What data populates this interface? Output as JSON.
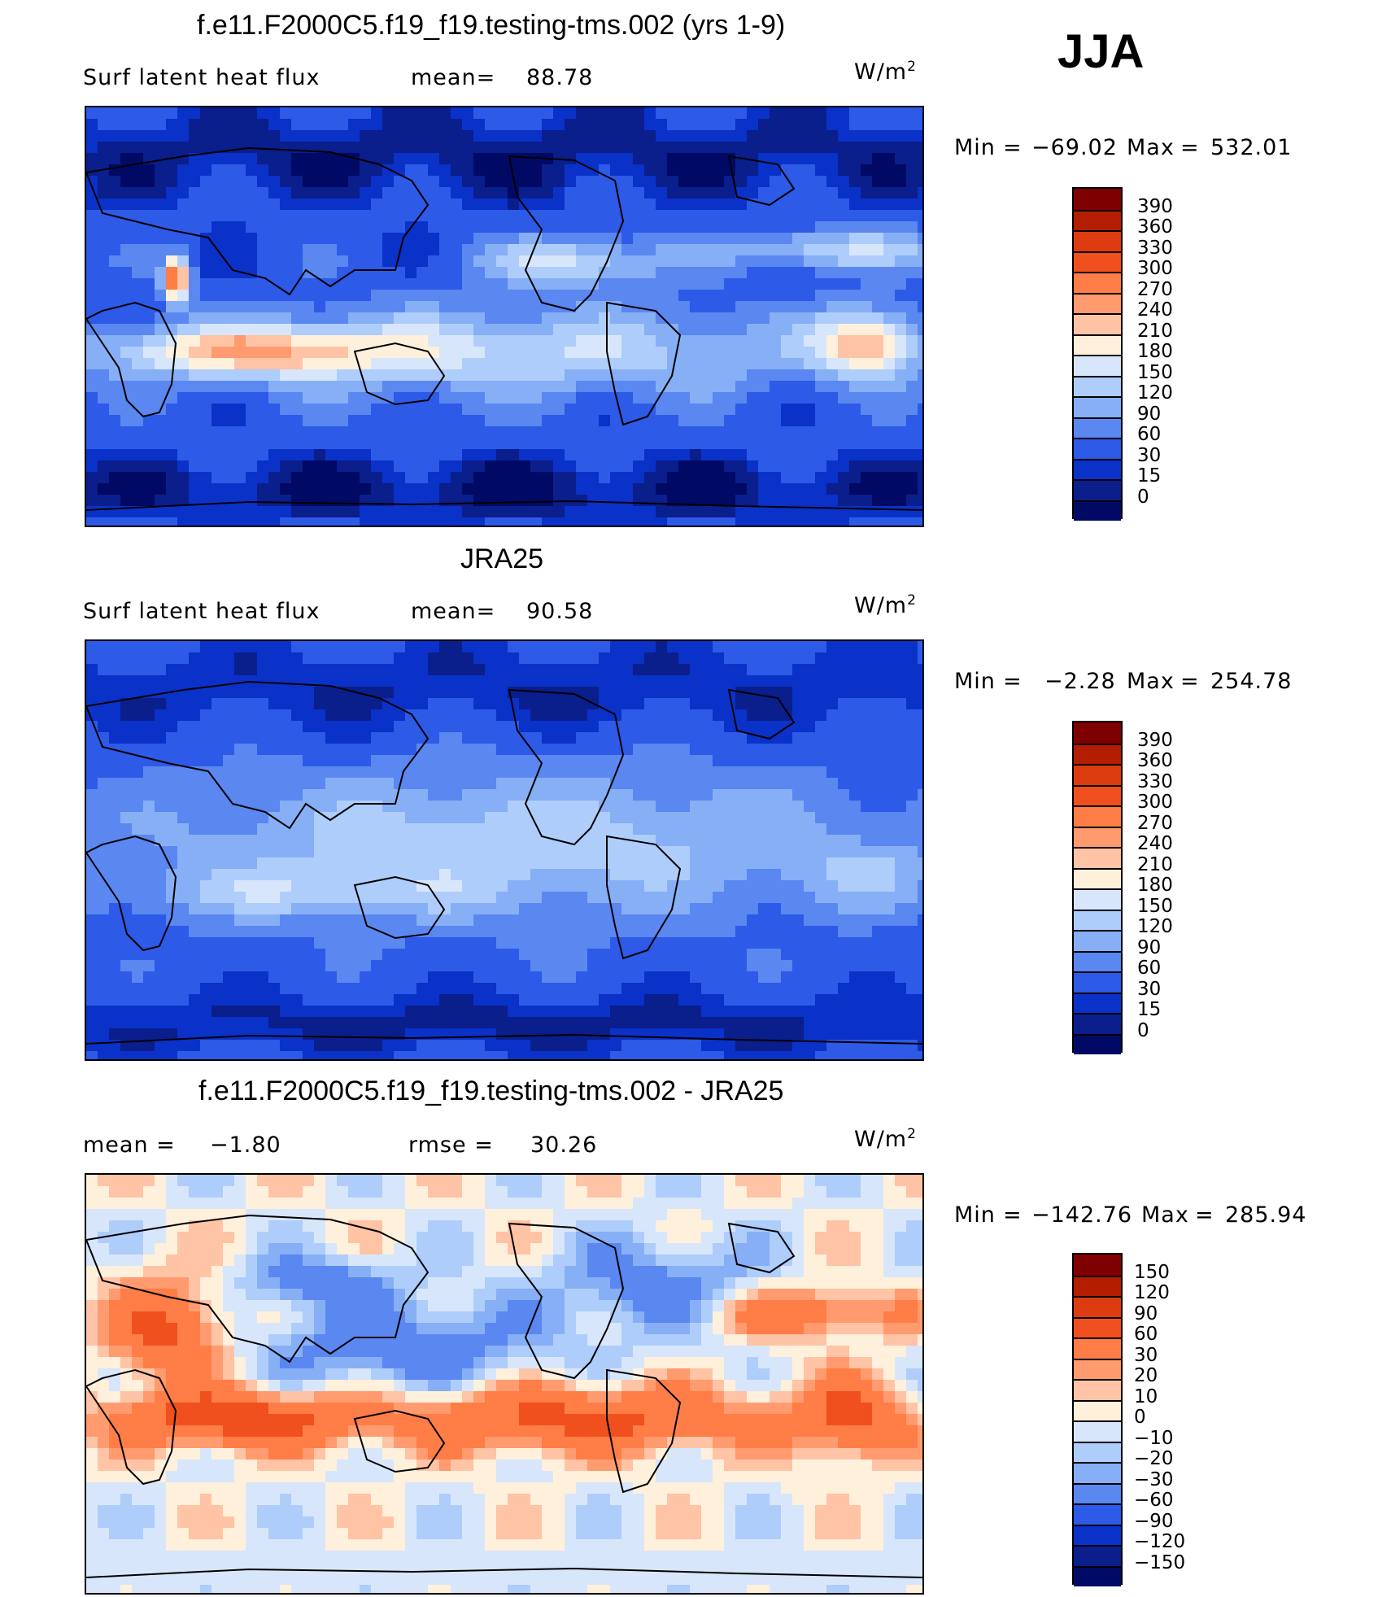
{
  "season": "JJA",
  "panels": [
    {
      "title": "f.e11.F2000C5.f19_f19.testing-tms.002 (yrs 1-9)",
      "left_label": "Surf latent heat flux",
      "stat_label": "mean=",
      "stat_value": "88.78",
      "units": "W/m",
      "units_exp": "2",
      "min_label": "Min",
      "min_value": "−69.02",
      "max_label": "Max",
      "max_value": "532.01",
      "colorbar_levels": [
        "390",
        "360",
        "330",
        "300",
        "270",
        "240",
        "210",
        "180",
        "150",
        "120",
        "90",
        "60",
        "30",
        "15",
        "0"
      ],
      "colors": [
        "#7f0000",
        "#b41e00",
        "#dc3c0f",
        "#f0501e",
        "#ff7d46",
        "#ff9b6e",
        "#ffc3a5",
        "#fff0dc",
        "#d7e6fa",
        "#afcdfa",
        "#87aff5",
        "#5a87f0",
        "#2d5ae6",
        "#0a32c8",
        "#0a1e8c",
        "#000a64"
      ],
      "field": "model"
    },
    {
      "title": "JRA25",
      "left_label": "Surf latent heat flux",
      "stat_label": "mean=",
      "stat_value": "90.58",
      "units": "W/m",
      "units_exp": "2",
      "min_label": "Min",
      "min_value": "−2.28",
      "max_label": "Max",
      "max_value": "254.78",
      "colorbar_levels": [
        "390",
        "360",
        "330",
        "300",
        "270",
        "240",
        "210",
        "180",
        "150",
        "120",
        "90",
        "60",
        "30",
        "15",
        "0"
      ],
      "colors": [
        "#7f0000",
        "#b41e00",
        "#dc3c0f",
        "#f0501e",
        "#ff7d46",
        "#ff9b6e",
        "#ffc3a5",
        "#fff0dc",
        "#d7e6fa",
        "#afcdfa",
        "#87aff5",
        "#5a87f0",
        "#2d5ae6",
        "#0a32c8",
        "#0a1e8c",
        "#000a64"
      ],
      "field": "obs"
    },
    {
      "title": "f.e11.F2000C5.f19_f19.testing-tms.002 - JRA25",
      "left_label": "mean =",
      "left_value": "−1.80",
      "stat_label": "rmse =",
      "stat_value": "30.26",
      "units": "W/m",
      "units_exp": "2",
      "min_label": "Min",
      "min_value": "−142.76",
      "max_label": "Max",
      "max_value": "285.94",
      "colorbar_levels": [
        "150",
        "120",
        "90",
        "60",
        "30",
        "20",
        "10",
        "0",
        "−10",
        "−20",
        "−30",
        "−60",
        "−90",
        "−120",
        "−150"
      ],
      "colors": [
        "#7f0000",
        "#b41e00",
        "#dc3c0f",
        "#f0501e",
        "#ff7d46",
        "#ff9b6e",
        "#ffc3a5",
        "#fff0dc",
        "#d7e6fa",
        "#afcdfa",
        "#87aff5",
        "#5a87f0",
        "#2d5ae6",
        "#0a32c8",
        "#0a1e8c",
        "#000a64"
      ],
      "field": "diff"
    }
  ]
}
